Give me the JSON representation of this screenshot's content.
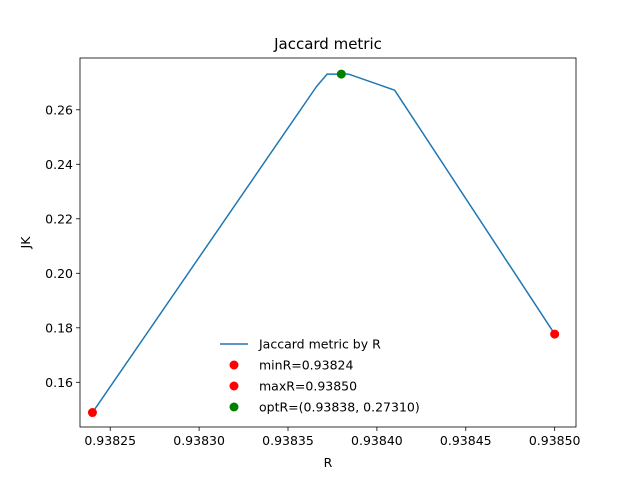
{
  "chart_data": {
    "type": "line",
    "title": "Jaccard metric",
    "xlabel": "R",
    "ylabel": "JK",
    "xlim": [
      0.938233,
      0.938512
    ],
    "ylim": [
      0.1436,
      0.279
    ],
    "xticks": [
      "0.93825",
      "0.93830",
      "0.93835",
      "0.93840",
      "0.93845",
      "0.93850"
    ],
    "yticks": [
      "0.16",
      "0.18",
      "0.20",
      "0.22",
      "0.24",
      "0.26"
    ],
    "grid": false,
    "legend_position": "lower center",
    "series": [
      {
        "name": "Jaccard metric by R",
        "kind": "line",
        "color": "#1f77b4",
        "x": [
          0.93824,
          0.938366,
          0.938372,
          0.938384,
          0.93841,
          0.9385
        ],
        "y": [
          0.1489,
          0.2685,
          0.2731,
          0.2731,
          0.2672,
          0.1777
        ]
      },
      {
        "name": "minR=0.93824",
        "kind": "point",
        "color": "#ff0000",
        "x": [
          0.93824
        ],
        "y": [
          0.1489
        ]
      },
      {
        "name": "maxR=0.93850",
        "kind": "point",
        "color": "#ff0000",
        "x": [
          0.9385
        ],
        "y": [
          0.1777
        ]
      },
      {
        "name": "optR=(0.93838, 0.27310)",
        "kind": "point",
        "color": "#008000",
        "x": [
          0.93838
        ],
        "y": [
          0.2731
        ]
      }
    ]
  }
}
